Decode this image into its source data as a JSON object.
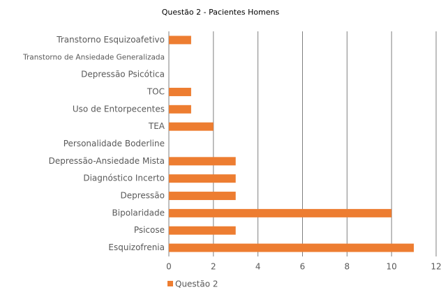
{
  "chart_data": {
    "type": "hbar",
    "title": "Questão 2 - Pacientes Homens",
    "categories": [
      "Transtorno Esquizoafetivo",
      "Transtorno de Ansiedade Generalizada",
      "Depressão Psicótica",
      "TOC",
      "Uso de Entorpecentes",
      "TEA",
      "Personalidade Boderline",
      "Depressão-Ansiedade Mista",
      "Diagnóstico Incerto",
      "Depressão",
      "Bipolaridade",
      "Psicose",
      "Esquizofrenia"
    ],
    "series": [
      {
        "name": "Questão 2",
        "color": "#ed7d31",
        "values": [
          1,
          0,
          0,
          1,
          1,
          2,
          0,
          3,
          3,
          3,
          10,
          3,
          11
        ]
      }
    ],
    "xlim": [
      0,
      12
    ],
    "xticks": [
      0,
      2,
      4,
      6,
      8,
      10,
      12
    ],
    "grid": true,
    "legend": "bottom"
  }
}
